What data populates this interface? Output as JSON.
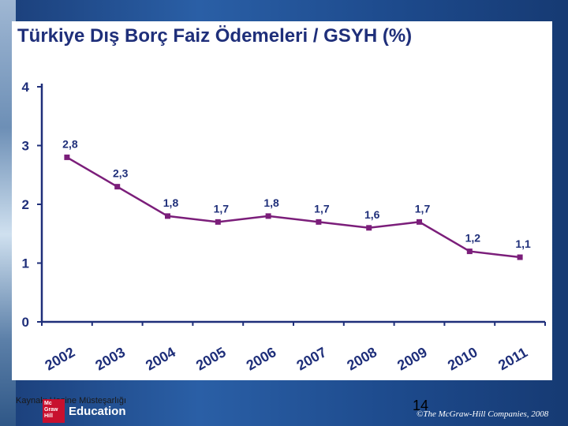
{
  "slide": {
    "source": "Kaynak: Hazine Müsteşarlığı",
    "logo_brand_lines": [
      "Mc",
      "Graw",
      "Hill"
    ],
    "logo_text": "Education",
    "page_number": "14",
    "copyright": "©The McGraw-Hill Companies, 2008"
  },
  "colors": {
    "line": "#7b1e7a",
    "title": "#1f2f7a",
    "tick_label": "#1f2f7a",
    "axis": "#1f2f7a"
  },
  "chart_data": {
    "type": "line",
    "title": "Türkiye Dış Borç Faiz Ödemeleri / GSYH (%)",
    "categories": [
      "2002",
      "2003",
      "2004",
      "2005",
      "2006",
      "2007",
      "2008",
      "2009",
      "2010",
      "2011"
    ],
    "values": [
      2.8,
      2.3,
      1.8,
      1.7,
      1.8,
      1.7,
      1.6,
      1.7,
      1.2,
      1.1
    ],
    "data_labels": [
      "2,8",
      "2,3",
      "1,8",
      "1,7",
      "1,8",
      "1,7",
      "1,6",
      "1,7",
      "1,2",
      "1,1"
    ],
    "y_ticks": [
      "0",
      "1",
      "2",
      "3",
      "4"
    ],
    "ylim": [
      0,
      4
    ],
    "grid": false,
    "legend": "none"
  }
}
